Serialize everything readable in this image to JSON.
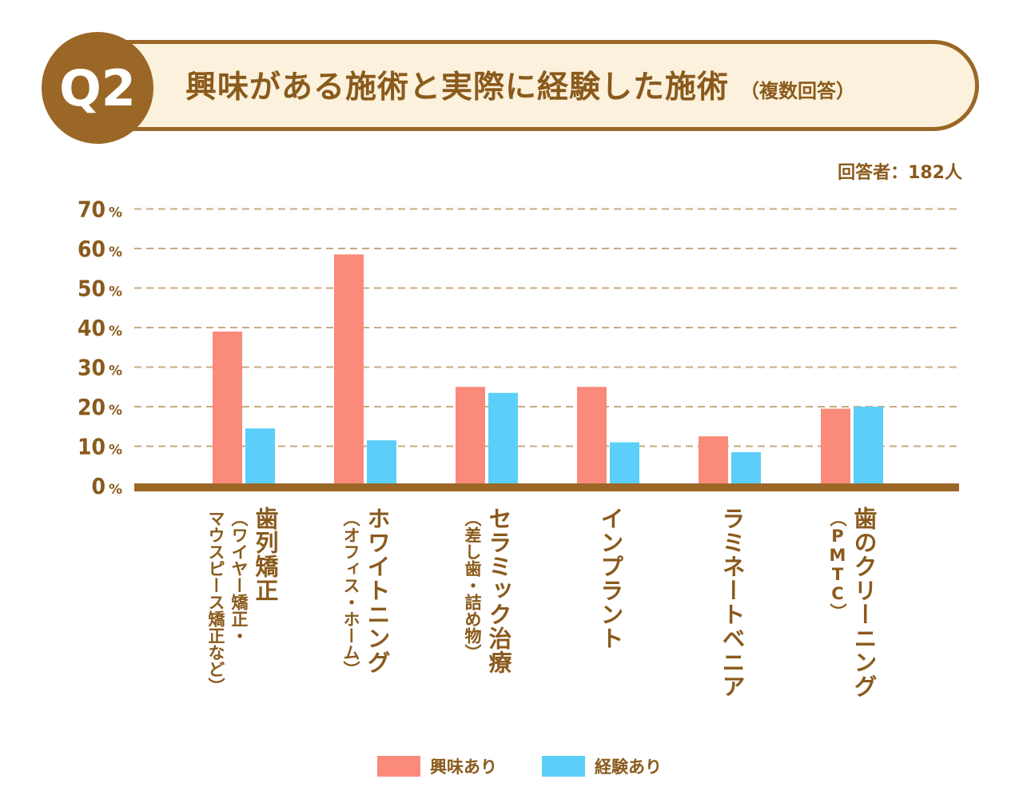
{
  "header": {
    "badge": "Q2",
    "title": "興味がある施術と実際に経験した施術",
    "subtitle": "（複数回答）"
  },
  "respondents": "回答者：182人",
  "colors": {
    "interest": "#fa8a7a",
    "experience": "#5bcffa",
    "brown": "#9a6726",
    "grid": "#c8aa82"
  },
  "chart_data": {
    "type": "bar",
    "categories": [
      "歯列矯正（ワイヤー矯正・マウスピース矯正など）",
      "ホワイトニング（オフィス・ホーム）",
      "セラミック治療（差し歯・詰め物）",
      "インプラント",
      "ラミネートベニア",
      "歯のクリーニング（PMTC）"
    ],
    "category_lines": [
      [
        "歯列矯正",
        "（ワイヤー矯正・",
        "マウスピース矯正など）"
      ],
      [
        "ホワイトニング",
        "（オフィス・ホーム）"
      ],
      [
        "セラミック治療",
        "（差し歯・詰め物）"
      ],
      [
        "インプラント"
      ],
      [
        "ラミネートベニア"
      ],
      [
        "歯のクリーニング",
        "（PMTC）"
      ]
    ],
    "series": [
      {
        "name": "興味あり",
        "values": [
          39,
          58.5,
          25,
          25,
          12.5,
          19.5
        ]
      },
      {
        "name": "経験あり",
        "values": [
          14.5,
          11.5,
          23.5,
          11,
          8.5,
          20
        ]
      }
    ],
    "ylim": [
      0,
      70
    ],
    "yticks": [
      "0",
      "10",
      "20",
      "30",
      "40",
      "50",
      "60",
      "70"
    ],
    "ytick_unit": "%",
    "grid": true,
    "legend": "bottom"
  }
}
